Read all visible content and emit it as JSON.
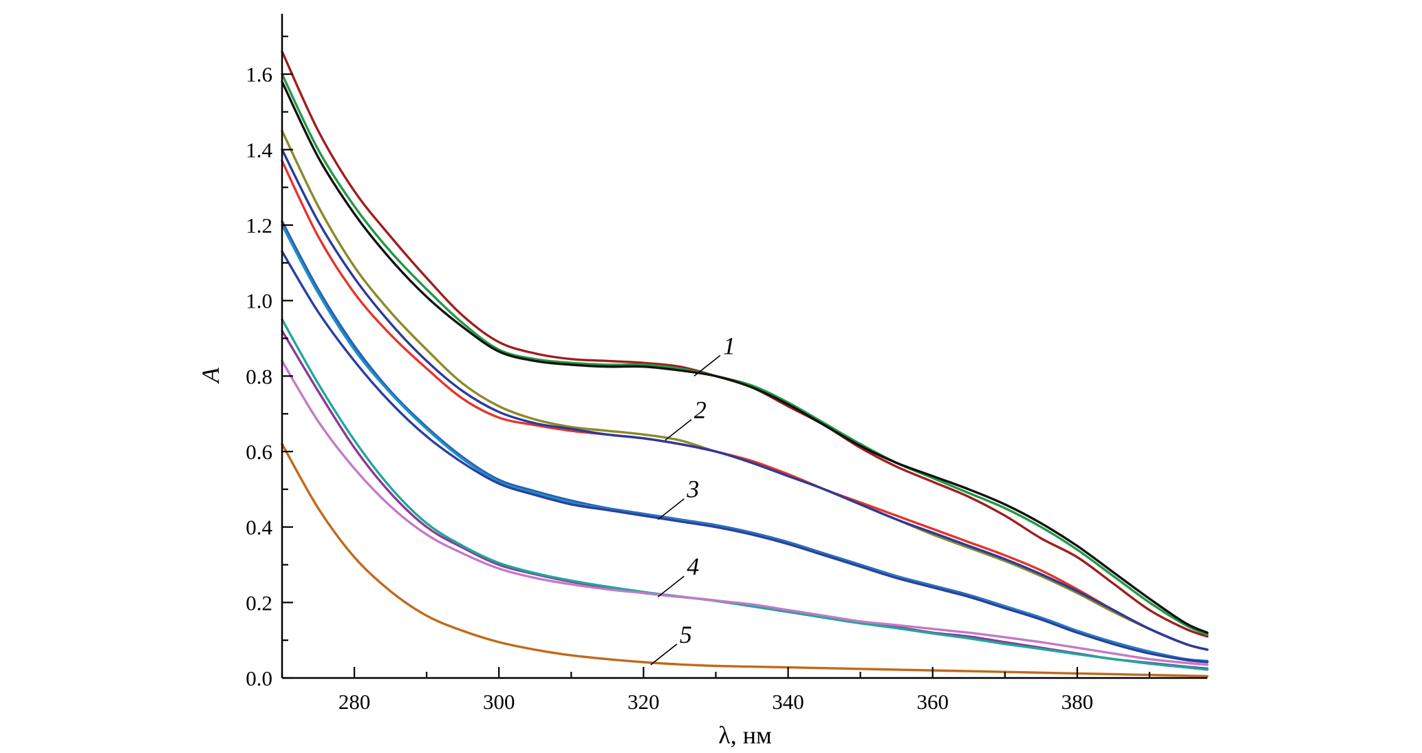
{
  "chart_data": {
    "type": "line",
    "xlabel": "λ, нм",
    "ylabel": "A",
    "xlim": [
      270,
      398
    ],
    "ylim": [
      0,
      1.76
    ],
    "x_ticks": [
      280,
      300,
      320,
      340,
      360,
      380
    ],
    "x_minor_ticks": [
      270,
      290,
      310,
      330,
      350,
      370,
      390
    ],
    "y_ticks": [
      0.0,
      0.2,
      0.4,
      0.6,
      0.8,
      1.0,
      1.2,
      1.4,
      1.6
    ],
    "y_tick_labels": [
      "0.0",
      "0.2",
      "0.4",
      "0.6",
      "0.8",
      "1.0",
      "1.2",
      "1.4",
      "1.6"
    ],
    "y_minor_ticks": [
      0.1,
      0.3,
      0.5,
      0.7,
      0.9,
      1.1,
      1.3,
      1.5,
      1.7
    ],
    "grid": false,
    "legend": "none",
    "x": [
      270,
      275,
      280,
      285,
      290,
      295,
      300,
      305,
      310,
      315,
      320,
      325,
      330,
      335,
      340,
      345,
      350,
      355,
      360,
      365,
      370,
      375,
      380,
      385,
      390,
      395,
      398
    ],
    "series": [
      {
        "color": "#a01e1e",
        "values": [
          1.66,
          1.45,
          1.29,
          1.17,
          1.06,
          0.96,
          0.89,
          0.86,
          0.845,
          0.84,
          0.835,
          0.825,
          0.8,
          0.77,
          0.72,
          0.67,
          0.61,
          0.56,
          0.52,
          0.48,
          0.43,
          0.37,
          0.32,
          0.25,
          0.18,
          0.13,
          0.11
        ]
      },
      {
        "color": "#1f9a46",
        "values": [
          1.6,
          1.4,
          1.25,
          1.13,
          1.03,
          0.94,
          0.87,
          0.845,
          0.835,
          0.83,
          0.83,
          0.82,
          0.8,
          0.775,
          0.73,
          0.675,
          0.62,
          0.57,
          0.53,
          0.49,
          0.45,
          0.4,
          0.34,
          0.27,
          0.2,
          0.14,
          0.115
        ]
      },
      {
        "color": "#111111",
        "values": [
          1.58,
          1.38,
          1.23,
          1.11,
          1.01,
          0.93,
          0.865,
          0.84,
          0.83,
          0.825,
          0.825,
          0.815,
          0.8,
          0.77,
          0.725,
          0.67,
          0.615,
          0.57,
          0.535,
          0.5,
          0.46,
          0.41,
          0.35,
          0.28,
          0.21,
          0.145,
          0.12
        ]
      },
      {
        "color": "#8a8a2a",
        "values": [
          1.45,
          1.25,
          1.09,
          0.97,
          0.87,
          0.78,
          0.72,
          0.685,
          0.665,
          0.655,
          0.645,
          0.63,
          0.6,
          0.575,
          0.54,
          0.5,
          0.46,
          0.42,
          0.38,
          0.345,
          0.31,
          0.27,
          0.225,
          0.175,
          0.13,
          0.09,
          0.075
        ]
      },
      {
        "color": "#e8332a",
        "values": [
          1.37,
          1.17,
          1.02,
          0.91,
          0.82,
          0.74,
          0.69,
          0.67,
          0.655,
          0.645,
          0.635,
          0.62,
          0.6,
          0.575,
          0.54,
          0.5,
          0.465,
          0.43,
          0.395,
          0.36,
          0.325,
          0.285,
          0.235,
          0.18,
          0.13,
          0.09,
          0.075
        ]
      },
      {
        "color": "#2b3a9a",
        "values": [
          1.4,
          1.21,
          1.06,
          0.94,
          0.84,
          0.76,
          0.705,
          0.675,
          0.66,
          0.645,
          0.635,
          0.62,
          0.6,
          0.57,
          0.535,
          0.5,
          0.46,
          0.42,
          0.385,
          0.35,
          0.315,
          0.275,
          0.23,
          0.18,
          0.13,
          0.09,
          0.075
        ]
      },
      {
        "color": "#2b5fb0",
        "values": [
          1.21,
          1.03,
          0.88,
          0.76,
          0.665,
          0.585,
          0.525,
          0.495,
          0.47,
          0.45,
          0.435,
          0.42,
          0.405,
          0.385,
          0.36,
          0.33,
          0.3,
          0.27,
          0.245,
          0.22,
          0.19,
          0.16,
          0.125,
          0.095,
          0.07,
          0.05,
          0.045
        ]
      },
      {
        "color": "#1e8fc8",
        "values": [
          1.2,
          1.02,
          0.87,
          0.755,
          0.66,
          0.58,
          0.52,
          0.49,
          0.465,
          0.447,
          0.432,
          0.418,
          0.402,
          0.382,
          0.357,
          0.327,
          0.297,
          0.268,
          0.242,
          0.217,
          0.188,
          0.158,
          0.123,
          0.093,
          0.068,
          0.048,
          0.043
        ]
      },
      {
        "color": "#2a3fa0",
        "values": [
          1.13,
          0.97,
          0.84,
          0.73,
          0.64,
          0.57,
          0.515,
          0.485,
          0.46,
          0.445,
          0.43,
          0.415,
          0.4,
          0.38,
          0.355,
          0.325,
          0.295,
          0.265,
          0.24,
          0.215,
          0.185,
          0.155,
          0.12,
          0.09,
          0.065,
          0.048,
          0.042
        ]
      },
      {
        "color": "#8a3a9a",
        "values": [
          0.92,
          0.76,
          0.61,
          0.49,
          0.4,
          0.345,
          0.3,
          0.275,
          0.255,
          0.24,
          0.225,
          0.215,
          0.205,
          0.19,
          0.175,
          0.16,
          0.145,
          0.135,
          0.12,
          0.11,
          0.095,
          0.08,
          0.065,
          0.05,
          0.04,
          0.03,
          0.025
        ]
      },
      {
        "color": "#1fa89a",
        "values": [
          0.95,
          0.78,
          0.63,
          0.505,
          0.41,
          0.35,
          0.305,
          0.278,
          0.258,
          0.242,
          0.228,
          0.216,
          0.204,
          0.19,
          0.176,
          0.16,
          0.145,
          0.132,
          0.118,
          0.105,
          0.09,
          0.077,
          0.063,
          0.05,
          0.038,
          0.028,
          0.022
        ]
      },
      {
        "color": "#c27ac8",
        "values": [
          0.84,
          0.68,
          0.555,
          0.455,
          0.38,
          0.33,
          0.29,
          0.265,
          0.248,
          0.235,
          0.225,
          0.215,
          0.205,
          0.195,
          0.18,
          0.165,
          0.15,
          0.14,
          0.13,
          0.12,
          0.108,
          0.095,
          0.08,
          0.065,
          0.05,
          0.04,
          0.035
        ]
      },
      {
        "color": "#c06a1a",
        "values": [
          0.62,
          0.45,
          0.32,
          0.23,
          0.165,
          0.125,
          0.095,
          0.075,
          0.06,
          0.05,
          0.042,
          0.036,
          0.032,
          0.03,
          0.028,
          0.026,
          0.024,
          0.022,
          0.02,
          0.018,
          0.016,
          0.014,
          0.012,
          0.01,
          0.008,
          0.006,
          0.005
        ]
      }
    ],
    "annotations": [
      {
        "text": "1",
        "x": 327,
        "y": 0.8
      },
      {
        "text": "2",
        "x": 323,
        "y": 0.63
      },
      {
        "text": "3",
        "x": 322,
        "y": 0.42
      },
      {
        "text": "4",
        "x": 322,
        "y": 0.215
      },
      {
        "text": "5",
        "x": 321,
        "y": 0.035
      }
    ]
  }
}
